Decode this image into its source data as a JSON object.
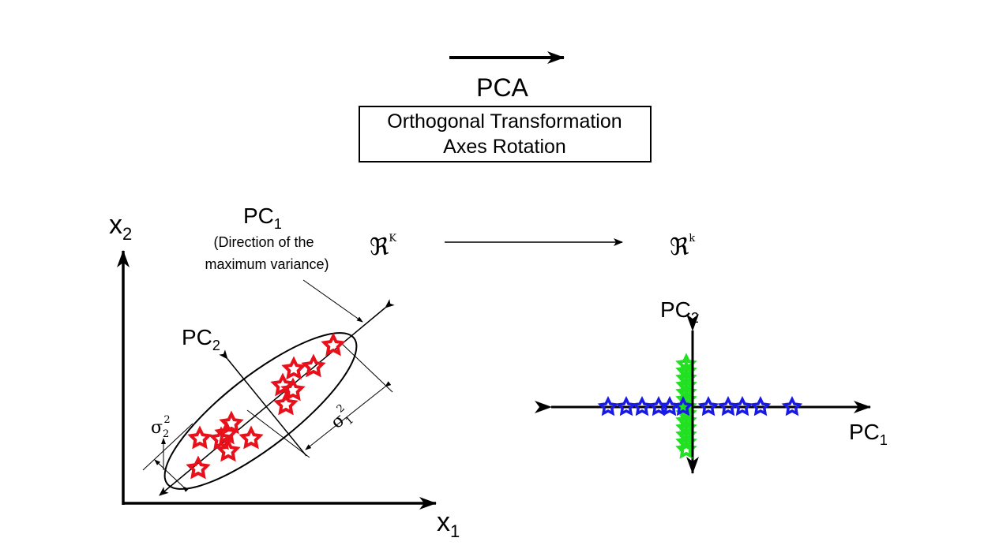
{
  "header": {
    "title": "PCA",
    "box_line1": "Orthogonal Transformation",
    "box_line2": "Axes Rotation"
  },
  "left_plot": {
    "x_axis_label": "x",
    "x_axis_sub": "1",
    "y_axis_label": "x",
    "y_axis_sub": "2",
    "pc1_label": "PC",
    "pc1_sub": "1",
    "pc1_note_line1": "(Direction of the",
    "pc1_note_line2": "maximum variance)",
    "pc2_label": "PC",
    "pc2_sub": "2",
    "sigma1": "σ",
    "sigma1_exp": "2",
    "sigma1_sub": "1",
    "sigma2": "σ",
    "sigma2_exp": "2",
    "sigma2_sub": "2",
    "point_color": "#e8101a"
  },
  "mapping": {
    "from_space": "ℜ",
    "from_exp": "K",
    "to_space": "ℜ",
    "to_exp": "k"
  },
  "right_plot": {
    "pc1_label": "PC",
    "pc1_sub": "1",
    "pc2_label": "PC",
    "pc2_sub": "2",
    "pc1_color": "#1a1ae6",
    "pc2_color": "#22e022"
  }
}
